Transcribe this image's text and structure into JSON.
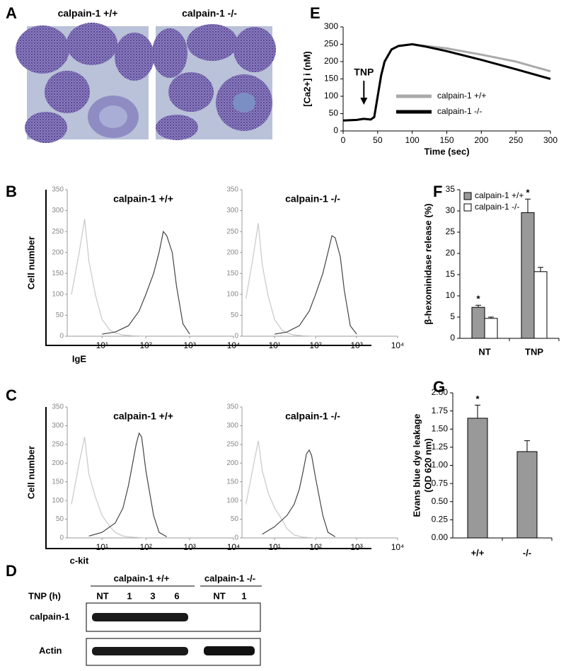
{
  "panel_labels": [
    "A",
    "B",
    "C",
    "D",
    "E",
    "F",
    "G"
  ],
  "panel_a": {
    "titles": [
      "calpain-1 +/+",
      "calpain-1 -/-"
    ]
  },
  "chart_data": [
    {
      "type": "line",
      "xlabel": "Time (sec)",
      "ylabel": "[Ca2+] i (nM)",
      "x": [
        0,
        20,
        30,
        40,
        45,
        50,
        55,
        60,
        70,
        80,
        100,
        120,
        150,
        200,
        250,
        300
      ],
      "series": [
        {
          "name": "calpain-1 +/+",
          "color": "#aaaaaa",
          "values": [
            30,
            32,
            35,
            33,
            40,
            100,
            160,
            200,
            235,
            245,
            250,
            245,
            238,
            220,
            200,
            172
          ]
        },
        {
          "name": "calpain-1 -/-",
          "color": "#000000",
          "values": [
            30,
            32,
            35,
            33,
            40,
            100,
            160,
            200,
            235,
            245,
            250,
            243,
            230,
            205,
            178,
            150
          ]
        }
      ],
      "annotations": [
        {
          "text": "TNP",
          "x": 30
        }
      ],
      "xlim": [
        0,
        300
      ],
      "xticks": [
        0,
        50,
        100,
        150,
        200,
        250,
        300
      ],
      "ylim": [
        0,
        300
      ],
      "yticks": [
        0,
        50,
        100,
        150,
        200,
        250,
        300
      ]
    },
    {
      "type": "bar",
      "ylabel": "β-hexominidase release (%)",
      "categories": [
        "NT",
        "TNP"
      ],
      "series": [
        {
          "name": "calpain-1 +/+",
          "color": "#999999",
          "values": [
            7.3,
            29.6
          ],
          "errors": [
            0.5,
            3.2
          ],
          "markers": [
            "*",
            "*"
          ]
        },
        {
          "name": "calpain-1 -/-",
          "color": "#ffffff",
          "values": [
            4.7,
            15.7
          ],
          "errors": [
            0.3,
            1.0
          ]
        }
      ],
      "ylim": [
        0,
        35
      ],
      "yticks": [
        0,
        5,
        10,
        15,
        20,
        25,
        30,
        35
      ]
    },
    {
      "type": "bar",
      "ylabel": "Evans blue dye leakage",
      "ylabel2": "(OD 620 nm)",
      "categories": [
        "+/+",
        "-/-"
      ],
      "series": [
        {
          "color": "#999999",
          "values": [
            1.65,
            1.19
          ],
          "errors": [
            0.18,
            0.15
          ],
          "markers": [
            "*",
            null
          ]
        }
      ],
      "ylim": [
        0,
        2
      ],
      "yticks": [
        {
          "value": 0,
          "label": "0.00"
        },
        {
          "value": 0.25,
          "label": "0.25"
        },
        {
          "value": 0.5,
          "label": "0.50"
        },
        {
          "value": 0.75,
          "label": "0.75"
        },
        {
          "value": 1,
          "label": "1.00"
        },
        {
          "value": 1.25,
          "label": "1.25"
        },
        {
          "value": 1.5,
          "label": "1.50"
        },
        {
          "value": 1.75,
          "label": "1.75"
        },
        {
          "value": 2,
          "label": "2.00"
        }
      ]
    },
    {
      "type": "flow",
      "title": "calpain-1 +/+",
      "ylabel": "Cell number",
      "xlabel": "IgE",
      "xscale": "log",
      "series": [
        {
          "color": "#c8c8c8",
          "x": [
            2,
            3,
            4,
            5,
            7,
            10,
            15,
            20,
            30,
            50,
            100
          ],
          "values": [
            100,
            200,
            280,
            180,
            100,
            40,
            15,
            8,
            3,
            1,
            0
          ]
        },
        {
          "color": "#444444",
          "x": [
            10,
            20,
            40,
            70,
            100,
            150,
            200,
            250,
            300,
            400,
            500,
            700,
            1000
          ],
          "values": [
            5,
            10,
            25,
            60,
            100,
            150,
            200,
            250,
            240,
            200,
            120,
            30,
            5
          ]
        }
      ],
      "xlim": [
        1.6,
        10000
      ],
      "xticks": [
        {
          "value": 10,
          "label": "10¹"
        },
        {
          "value": 100,
          "label": "10²"
        },
        {
          "value": 1000,
          "label": "10³"
        },
        {
          "value": 10000,
          "label": "10⁴"
        }
      ],
      "ylim": [
        0,
        350
      ],
      "yticks": [
        0,
        50,
        100,
        150,
        200,
        250,
        300,
        350
      ]
    },
    {
      "type": "flow",
      "title": "calpain-1 -/-",
      "xscale": "log",
      "series": [
        {
          "color": "#c8c8c8",
          "x": [
            2,
            3,
            4,
            5,
            7,
            10,
            15,
            20,
            30,
            50,
            100
          ],
          "values": [
            90,
            190,
            270,
            170,
            95,
            40,
            15,
            8,
            3,
            1,
            0
          ]
        },
        {
          "color": "#444444",
          "x": [
            10,
            20,
            40,
            70,
            100,
            150,
            200,
            250,
            300,
            400,
            500,
            700,
            1000
          ],
          "values": [
            5,
            10,
            25,
            60,
            100,
            150,
            200,
            240,
            235,
            190,
            110,
            25,
            5
          ]
        }
      ],
      "xlim": [
        1.6,
        10000
      ],
      "xticks": [
        {
          "value": 10,
          "label": "10¹"
        },
        {
          "value": 100,
          "label": "10²"
        },
        {
          "value": 1000,
          "label": "10³"
        },
        {
          "value": 10000,
          "label": "10⁴"
        }
      ],
      "ylim": [
        0,
        350
      ],
      "yticks": [
        0,
        50,
        100,
        150,
        200,
        250,
        300,
        350
      ]
    },
    {
      "type": "flow",
      "title": "calpain-1 +/+",
      "ylabel": "Cell number",
      "xlabel": "c-kit",
      "xscale": "log",
      "series": [
        {
          "color": "#c8c8c8",
          "x": [
            2,
            3,
            4,
            5,
            7,
            10,
            15,
            20,
            30,
            50,
            100
          ],
          "values": [
            90,
            200,
            270,
            170,
            110,
            60,
            30,
            15,
            5,
            2,
            0
          ]
        },
        {
          "color": "#444444",
          "x": [
            5,
            10,
            20,
            30,
            40,
            50,
            60,
            70,
            80,
            100,
            150,
            200,
            300
          ],
          "values": [
            5,
            15,
            40,
            80,
            140,
            200,
            250,
            280,
            270,
            180,
            60,
            15,
            3
          ]
        }
      ],
      "xlim": [
        1.6,
        10000
      ],
      "xticks": [
        {
          "value": 10,
          "label": "10¹"
        },
        {
          "value": 100,
          "label": "10²"
        },
        {
          "value": 1000,
          "label": "10³"
        },
        {
          "value": 10000,
          "label": "10⁴"
        }
      ],
      "ylim": [
        0,
        350
      ],
      "yticks": [
        0,
        50,
        100,
        150,
        200,
        250,
        300,
        350
      ]
    },
    {
      "type": "flow",
      "title": "calpain-1 -/-",
      "xscale": "log",
      "series": [
        {
          "color": "#c8c8c8",
          "x": [
            2,
            3,
            4,
            5,
            7,
            10,
            15,
            20,
            30,
            50,
            100
          ],
          "values": [
            90,
            190,
            260,
            180,
            120,
            80,
            50,
            25,
            8,
            2,
            0
          ]
        },
        {
          "color": "#444444",
          "x": [
            5,
            10,
            20,
            30,
            40,
            50,
            60,
            70,
            80,
            100,
            150,
            200,
            300
          ],
          "values": [
            10,
            30,
            60,
            90,
            130,
            180,
            225,
            235,
            220,
            160,
            60,
            15,
            3
          ]
        }
      ],
      "xlim": [
        1.6,
        10000
      ],
      "xticks": [
        {
          "value": 10,
          "label": "10¹"
        },
        {
          "value": 100,
          "label": "10²"
        },
        {
          "value": 1000,
          "label": "10³"
        },
        {
          "value": 10000,
          "label": "10⁴"
        }
      ],
      "ylim": [
        0,
        350
      ],
      "yticks": [
        0,
        50,
        100,
        150,
        200,
        250,
        300,
        350
      ]
    }
  ],
  "panel_d": {
    "groups": [
      "calpain-1 +/+",
      "calpain-1 -/-"
    ],
    "row_header": "TNP (h)",
    "lanes": [
      "NT",
      "1",
      "3",
      "6",
      "NT",
      "1"
    ],
    "rows": [
      "calpain-1",
      "Actin"
    ]
  }
}
